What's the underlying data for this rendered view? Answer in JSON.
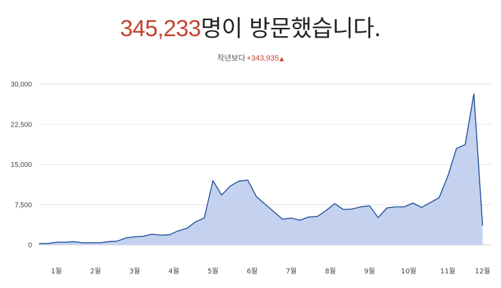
{
  "colors": {
    "accent": "#c4432b",
    "line": "#1f4e9c",
    "area": "#c5d2ef",
    "grid": "#e3e3e3",
    "text": "#222222"
  },
  "header": {
    "visitor_count": "345,233",
    "headline_suffix": "명이 방문했습니다.",
    "compare_label": "작년보다",
    "compare_delta": "+343,935",
    "compare_icon": "up-triangle-icon",
    "compare_symbol": "▲"
  },
  "chart_data": {
    "type": "area",
    "title": "",
    "xlabel": "",
    "ylabel": "",
    "ylim": [
      0,
      30000
    ],
    "yticks": [
      0,
      7500,
      15000,
      22500,
      30000
    ],
    "ytick_labels": [
      "0",
      "7,500",
      "15,000",
      "22,500",
      "30,000"
    ],
    "xlim": [
      0,
      52
    ],
    "month_ticks": [
      {
        "label": "1월",
        "x": 2
      },
      {
        "label": "2월",
        "x": 6.5
      },
      {
        "label": "3월",
        "x": 11
      },
      {
        "label": "4월",
        "x": 15.5
      },
      {
        "label": "5월",
        "x": 20
      },
      {
        "label": "6월",
        "x": 24.5
      },
      {
        "label": "7월",
        "x": 29
      },
      {
        "label": "8월",
        "x": 33.5
      },
      {
        "label": "9월",
        "x": 38
      },
      {
        "label": "10월",
        "x": 42.5
      },
      {
        "label": "11월",
        "x": 47
      },
      {
        "label": "12월",
        "x": 51
      }
    ],
    "grid": true,
    "legend": "none",
    "series": [
      {
        "values": [
          250,
          250,
          500,
          500,
          600,
          400,
          400,
          400,
          600,
          700,
          1300,
          1500,
          1600,
          2000,
          1800,
          1900,
          2600,
          3100,
          4300,
          5000,
          12000,
          9300,
          11000,
          11900,
          12100,
          9000,
          7600,
          6200,
          4800,
          5000,
          4600,
          5200,
          5300,
          6400,
          7700,
          6600,
          6700,
          7100,
          7300,
          5100,
          6900,
          7100,
          7100,
          7800,
          7000,
          7900,
          8800,
          12800,
          18000,
          18700,
          28200,
          3600
        ]
      }
    ]
  }
}
